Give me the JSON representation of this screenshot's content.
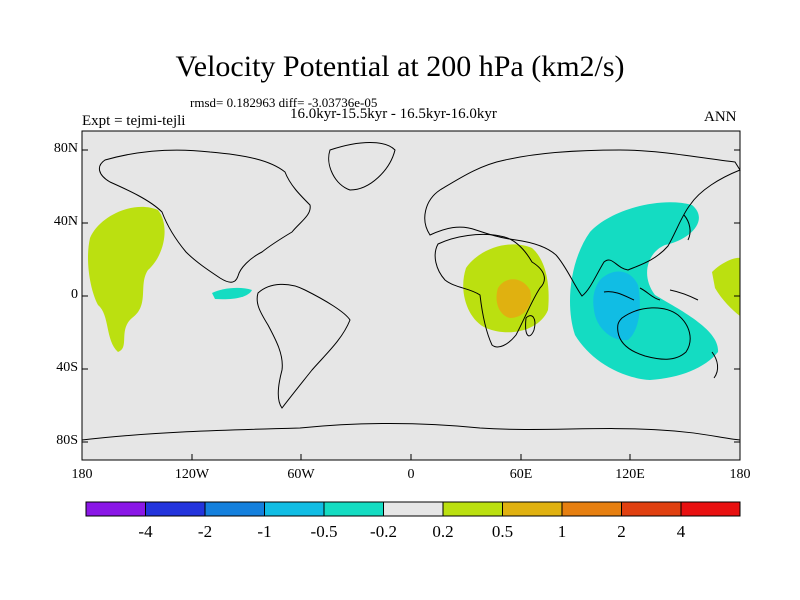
{
  "title": "Velocity Potential at 200 hPa (km2/s)",
  "stats": "rmsd= 0.182963 diff= -3.03736e-05",
  "experiment": "Expt = tejmi-tejli",
  "period": "16.0kyr-15.5kyr - 16.5kyr-16.0kyr",
  "season": "ANN",
  "axes": {
    "y_ticks": [
      "80N",
      "40N",
      "0",
      "40S",
      "80S"
    ],
    "x_ticks": [
      "180",
      "120W",
      "60W",
      "0",
      "60E",
      "120E",
      "180"
    ]
  },
  "colorbar": {
    "colors": [
      "#8a17e6",
      "#2334dc",
      "#1480dd",
      "#11bde4",
      "#14dcc2",
      "#e6e6e6",
      "#bbe010",
      "#e0b110",
      "#e67f10",
      "#e04010",
      "#e81010"
    ],
    "labels": [
      "-4",
      "-2",
      "-1",
      "-0.5",
      "-0.2",
      "0.2",
      "0.5",
      "1",
      "2",
      "4"
    ]
  },
  "colors": {
    "map_background": "#e6e6e6",
    "positive_weak": "#bbe010",
    "positive_moderate": "#e0b110",
    "negative_weak": "#14dcc2",
    "negative_moderate": "#11bde4"
  }
}
